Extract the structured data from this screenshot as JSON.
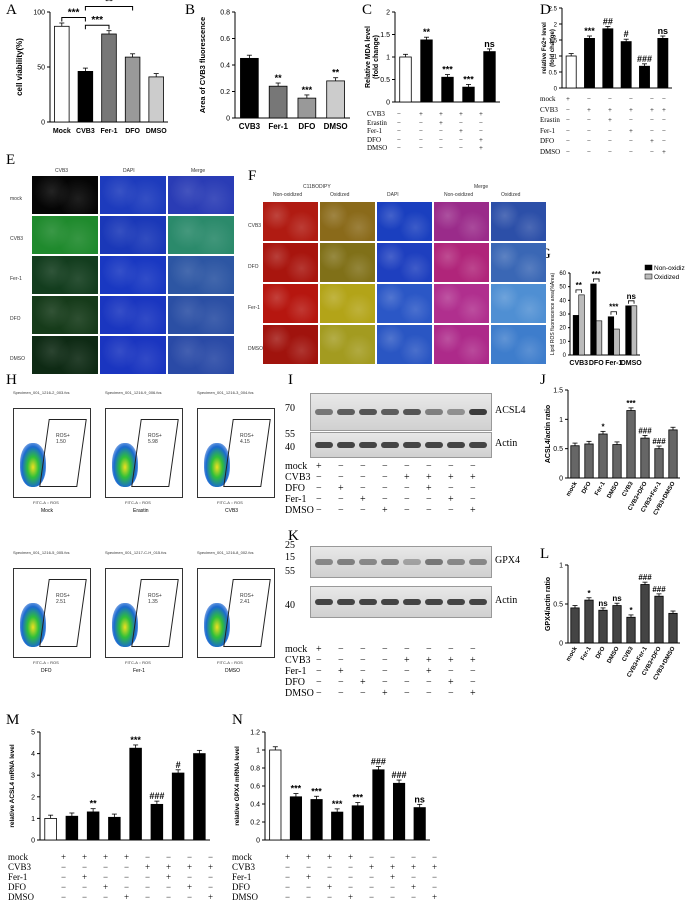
{
  "panels": {
    "A": {
      "letter": "A",
      "ylabel": "cell viability(%)"
    },
    "B": {
      "letter": "B",
      "ylabel": "Area of CVB3 fluorescence"
    },
    "C": {
      "letter": "C",
      "ylabel": "Relative MDA level\n(fold change)"
    },
    "D": {
      "letter": "D",
      "ylabel": "relative Fe2+ level\n(fold change)"
    },
    "E": {
      "letter": "E",
      "cols": [
        "CVB3",
        "DAPI",
        "Merge"
      ],
      "rows": [
        "mock",
        "CVB3",
        "Fer-1",
        "DFO",
        "DMSO"
      ]
    },
    "F": {
      "letter": "F",
      "header_group": "C11BODIPY",
      "cols": [
        "Non-oxidized",
        "Oxidized",
        "DAPI",
        "Non-oxidized",
        "Oxidized"
      ],
      "merge": "Merge",
      "rows": [
        "CVB3",
        "DFO",
        "Fer-1",
        "DMSO"
      ]
    },
    "G": {
      "letter": "G",
      "ylabel": "Lipid ROS fluorescence area(%Area)"
    },
    "H": {
      "letter": "H",
      "plots": [
        {
          "file": "Specimen_001_1216-2_003.fcs",
          "label": "Mock",
          "gate": "ROS+",
          "pct": "1.50"
        },
        {
          "file": "Specimen_001_1216-9_006.fcs",
          "label": "Erastin",
          "gate": "ROS+",
          "pct": "5.98"
        },
        {
          "file": "Specimen_001_1216-3_004.fcs",
          "label": "CVB3",
          "gate": "ROS+",
          "pct": "4.15"
        },
        {
          "file": "Specimen_001_1216-5_005.fcs",
          "label": "DFO",
          "gate": "ROS+",
          "pct": "2.51"
        },
        {
          "file": "Specimen_001_1217-C-H_015.fcs",
          "label": "Fer-1",
          "gate": "ROS+",
          "pct": "1.35"
        },
        {
          "file": "Specimen_001_1216-8_002.fcs",
          "label": "DMSO",
          "gate": "ROS+",
          "pct": "2.41"
        }
      ],
      "xaxis": "FITC-A :: ROS"
    },
    "I": {
      "letter": "I",
      "mw": [
        "70",
        "55",
        "40"
      ],
      "bands": [
        "ACSL4",
        "Actin"
      ],
      "rows": [
        "mock",
        "CVB3",
        "DFO",
        "Fer-1",
        "DMSO"
      ],
      "signs": [
        [
          "+",
          "−",
          "−",
          "−",
          "−",
          "−",
          "−",
          "−"
        ],
        [
          "−",
          "−",
          "−",
          "−",
          "+",
          "+",
          "+",
          "+"
        ],
        [
          "−",
          "+",
          "−",
          "−",
          "−",
          "+",
          "−",
          "−"
        ],
        [
          "−",
          "−",
          "+",
          "−",
          "−",
          "−",
          "+",
          "−"
        ],
        [
          "−",
          "−",
          "−",
          "+",
          "−",
          "−",
          "−",
          "+"
        ]
      ]
    },
    "J": {
      "letter": "J",
      "ylabel": "ACSL4/actin ratio"
    },
    "K": {
      "letter": "K",
      "mw": [
        "25",
        "15",
        "55",
        "40"
      ],
      "bands": [
        "GPX4",
        "Actin"
      ],
      "rows": [
        "mock",
        "CVB3",
        "Fer-1",
        "DFO",
        "DMSO"
      ],
      "signs": [
        [
          "+",
          "−",
          "−",
          "−",
          "−",
          "−",
          "−",
          "−"
        ],
        [
          "−",
          "−",
          "−",
          "−",
          "+",
          "+",
          "+",
          "+"
        ],
        [
          "−",
          "+",
          "−",
          "−",
          "−",
          "+",
          "−",
          "−"
        ],
        [
          "−",
          "−",
          "+",
          "−",
          "−",
          "−",
          "+",
          "−"
        ],
        [
          "−",
          "−",
          "−",
          "+",
          "−",
          "−",
          "−",
          "+"
        ]
      ]
    },
    "L": {
      "letter": "L",
      "ylabel": "GPX4/actin ratio"
    },
    "M": {
      "letter": "M",
      "ylabel": "relative ACSL4 mRNA level"
    },
    "N": {
      "letter": "N",
      "ylabel": "relative GPX4 mRNA level"
    }
  },
  "tables": {
    "C": {
      "rows": [
        "CVB3",
        "Erastin",
        "Fer-1",
        "DFO",
        "DMSO"
      ],
      "signs": [
        [
          "−",
          "+",
          "+",
          "+",
          "+"
        ],
        [
          "−",
          "−",
          "+",
          "−",
          "−"
        ],
        [
          "−",
          "−",
          "−",
          "+",
          "−"
        ],
        [
          "−",
          "−",
          "−",
          "−",
          "+"
        ],
        [
          "−",
          "−",
          "−",
          "−",
          "+"
        ]
      ]
    },
    "D": {
      "rows": [
        "mock",
        "CVB3",
        "Erastin",
        "Fer-1",
        "DFO",
        "DMSO"
      ],
      "signs": [
        [
          "+",
          "−",
          "−",
          "−",
          "−",
          "−"
        ],
        [
          "−",
          "+",
          "+",
          "+",
          "+",
          "+"
        ],
        [
          "−",
          "−",
          "+",
          "−",
          "−",
          "−"
        ],
        [
          "−",
          "−",
          "−",
          "+",
          "−",
          "−"
        ],
        [
          "−",
          "−",
          "−",
          "−",
          "+",
          "−"
        ],
        [
          "−",
          "−",
          "−",
          "−",
          "−",
          "+"
        ]
      ]
    },
    "M": {
      "rows": [
        "mock",
        "CVB3",
        "Fer-1",
        "DFO",
        "DMSO"
      ],
      "signs": [
        [
          "+",
          "+",
          "+",
          "+",
          "−",
          "−",
          "−",
          "−"
        ],
        [
          "−",
          "−",
          "−",
          "−",
          "+",
          "+",
          "+",
          "+"
        ],
        [
          "−",
          "+",
          "−",
          "−",
          "−",
          "+",
          "−",
          "−"
        ],
        [
          "−",
          "−",
          "+",
          "−",
          "−",
          "−",
          "+",
          "−"
        ],
        [
          "−",
          "−",
          "−",
          "+",
          "−",
          "−",
          "−",
          "+"
        ]
      ]
    },
    "N": {
      "rows": [
        "mock",
        "CVB3",
        "Fer-1",
        "DFO",
        "DMSO"
      ],
      "signs": [
        [
          "+",
          "+",
          "+",
          "+",
          "−",
          "−",
          "−",
          "−"
        ],
        [
          "−",
          "−",
          "−",
          "−",
          "+",
          "+",
          "+",
          "+"
        ],
        [
          "−",
          "+",
          "−",
          "−",
          "−",
          "+",
          "−",
          "−"
        ],
        [
          "−",
          "−",
          "+",
          "−",
          "−",
          "−",
          "+",
          "−"
        ],
        [
          "−",
          "−",
          "−",
          "+",
          "−",
          "−",
          "−",
          "+"
        ]
      ]
    }
  },
  "chart_data": [
    {
      "id": "A",
      "type": "bar",
      "categories": [
        "Mock",
        "CVB3",
        "Fer-1",
        "DFO",
        "DMSO"
      ],
      "values": [
        87,
        46,
        80,
        59,
        41
      ],
      "ylim": [
        0,
        100
      ],
      "yticks": [
        0,
        50,
        100
      ],
      "ylabel": "cell viability(%)",
      "fills": [
        "#ffffff",
        "#000000",
        "#777777",
        "#999999",
        "#cccccc"
      ],
      "sig": [
        {
          "label": "***",
          "from": 0,
          "to": 1,
          "y": 95
        },
        {
          "label": "***",
          "from": 1,
          "to": 2,
          "y": 88
        },
        {
          "label": "**",
          "from": 1,
          "to": 3,
          "y": 105
        }
      ]
    },
    {
      "id": "B",
      "type": "bar",
      "categories": [
        "CVB3",
        "Fer-1",
        "DFO",
        "DMSO"
      ],
      "values": [
        0.45,
        0.24,
        0.15,
        0.28
      ],
      "ylim": [
        0,
        0.8
      ],
      "yticks": [
        0.0,
        0.2,
        0.4,
        0.6,
        0.8
      ],
      "ylabel": "Area of CVB3 fluorescence",
      "fills": [
        "#000000",
        "#777777",
        "#999999",
        "#cccccc"
      ],
      "annot": [
        "",
        "**",
        "***",
        "**"
      ]
    },
    {
      "id": "C",
      "type": "bar",
      "categories": [
        "1",
        "2",
        "3",
        "4",
        "5"
      ],
      "values": [
        1.0,
        1.38,
        0.55,
        0.33,
        1.12
      ],
      "ylim": [
        0,
        2.0
      ],
      "yticks": [
        0.0,
        0.5,
        1.0,
        1.5,
        2.0
      ],
      "ylabel": "Relative MDA level (fold change)",
      "fills": [
        "#ffffff",
        "#000000",
        "#000000",
        "#000000",
        "#000000"
      ],
      "annot": [
        "",
        "**",
        "***",
        "***",
        "ns"
      ]
    },
    {
      "id": "D",
      "type": "bar",
      "categories": [
        "1",
        "2",
        "3",
        "4",
        "5",
        "6"
      ],
      "values": [
        1.0,
        1.55,
        1.85,
        1.45,
        0.68,
        1.55
      ],
      "ylim": [
        0,
        2.5
      ],
      "yticks": [
        0.0,
        0.5,
        1.0,
        1.5,
        2.0,
        2.5
      ],
      "ylabel": "relative Fe2+ level (fold change)",
      "fills": [
        "#ffffff",
        "#000000",
        "#000000",
        "#000000",
        "#000000",
        "#000000"
      ],
      "annot": [
        "",
        "***",
        "##",
        "#",
        "###",
        "ns"
      ]
    },
    {
      "id": "G",
      "type": "bar",
      "categories": [
        "CVB3",
        "DFO",
        "Fer-1",
        "DMSO"
      ],
      "series": [
        {
          "name": "Non-oxidized",
          "values": [
            29,
            52,
            28,
            36
          ]
        },
        {
          "name": "Oxidized",
          "values": [
            44,
            25,
            19,
            36
          ]
        }
      ],
      "ylim": [
        0,
        60
      ],
      "yticks": [
        0,
        10,
        20,
        30,
        40,
        50,
        60
      ],
      "ylabel": "Lipid ROS fluorescence area(%Area)",
      "legend": "top-right",
      "sig": [
        {
          "label": "**",
          "cat": 0
        },
        {
          "label": "***",
          "cat": 1
        },
        {
          "label": "***",
          "cat": 2
        },
        {
          "label": "ns",
          "cat": 3
        }
      ]
    },
    {
      "id": "J",
      "type": "bar",
      "categories": [
        "mock",
        "DFO",
        "Fer-1",
        "DMSO",
        "CVB3",
        "CVB3+DFO",
        "CVB3+Fer-1",
        "CVB3+DMSO"
      ],
      "values": [
        0.55,
        0.58,
        0.75,
        0.57,
        1.15,
        0.68,
        0.5,
        0.82
      ],
      "ylim": [
        0,
        1.5
      ],
      "yticks": [
        0.0,
        0.5,
        1.0,
        1.5
      ],
      "ylabel": "ACSL4/actin ratio",
      "annot": [
        "",
        "",
        "*",
        "",
        "***",
        "###",
        "###",
        ""
      ]
    },
    {
      "id": "L",
      "type": "bar",
      "categories": [
        "mock",
        "Fer-1",
        "DFO",
        "DMSO",
        "CVB3",
        "CVB3+Fer-1",
        "CVB3+DFO",
        "CVB3+DMSO"
      ],
      "values": [
        0.45,
        0.55,
        0.42,
        0.48,
        0.33,
        0.75,
        0.6,
        0.38
      ],
      "ylim": [
        0,
        1.0
      ],
      "yticks": [
        0.0,
        0.5,
        1.0
      ],
      "ylabel": "GPX4/actin ratio",
      "annot": [
        "",
        "*",
        "ns",
        "ns",
        "*",
        "###",
        "###",
        ""
      ]
    },
    {
      "id": "M",
      "type": "bar",
      "categories": [
        "1",
        "2",
        "3",
        "4",
        "5",
        "6",
        "7",
        "8"
      ],
      "values": [
        1.0,
        1.1,
        1.3,
        1.05,
        4.25,
        1.65,
        3.1,
        4.0
      ],
      "ylim": [
        0,
        5
      ],
      "yticks": [
        0,
        1,
        2,
        3,
        4,
        5
      ],
      "ylabel": "relative ACSL4 mRNA level",
      "fills": [
        "#ffffff",
        "#000000",
        "#000000",
        "#000000",
        "#000000",
        "#000000",
        "#000000",
        "#000000"
      ],
      "annot": [
        "",
        "",
        "**",
        "",
        "***",
        "###",
        "#",
        ""
      ]
    },
    {
      "id": "N",
      "type": "bar",
      "categories": [
        "1",
        "2",
        "3",
        "4",
        "5",
        "6",
        "7",
        "8"
      ],
      "values": [
        1.0,
        0.48,
        0.45,
        0.31,
        0.38,
        0.78,
        0.63,
        0.36
      ],
      "ylim": [
        0,
        1.2
      ],
      "yticks": [
        0.0,
        0.2,
        0.4,
        0.6,
        0.8,
        1.0,
        1.2
      ],
      "ylabel": "relative GPX4 mRNA level",
      "fills": [
        "#ffffff",
        "#000000",
        "#000000",
        "#000000",
        "#000000",
        "#000000",
        "#000000",
        "#000000"
      ],
      "annot": [
        "",
        "***",
        "***",
        "***",
        "***",
        "###",
        "###",
        "ns"
      ]
    }
  ]
}
